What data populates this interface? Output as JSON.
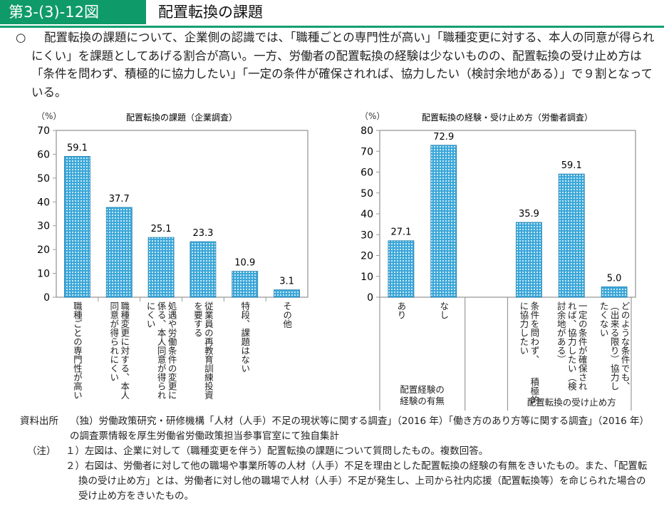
{
  "header": {
    "figure_number": "第3-(3)-12図",
    "title": "配置転換の課題"
  },
  "lead": {
    "bullet": "○",
    "text": "配置転換の課題について、企業側の認識では、「職種ごとの専門性が高い」「職種変更に対する、本人の同意が得られにくい」を課題としてあげる割合が高い。一方、労働者の配置転換の経験は少ないものの、配置転換の受け止め方は「条件を問わず、積極的に協力したい」「一定の条件が確保されれば、協力したい（検討余地がある）」で９割となっている。"
  },
  "chart_data": [
    {
      "type": "bar",
      "title": "配置転換の課題（企業調査）",
      "ylabel": "（%）",
      "ylim": [
        0,
        70
      ],
      "yticks": [
        0,
        10,
        20,
        30,
        40,
        50,
        60,
        70
      ],
      "categories": [
        "職種ごとの専門性が高い",
        "職種変更に対する、本人\n同意が得られにくい",
        "処遇や労働条件の変更に\n係る、本人同意が得られ\nにくい",
        "従業員の再教育訓練投資\nを要する",
        "特段、課題はない",
        "その他"
      ],
      "values": [
        59.1,
        37.7,
        25.1,
        23.3,
        10.9,
        3.1
      ],
      "bar_color": "#3aa6d8"
    },
    {
      "type": "bar",
      "title": "配置転換の経験・受け止め方（労働者調査）",
      "ylabel": "（%）",
      "ylim": [
        0,
        80
      ],
      "yticks": [
        0,
        10,
        20,
        30,
        40,
        50,
        60,
        70,
        80
      ],
      "categories": [
        "あり",
        "なし",
        "",
        "条件を問わず、　　積極的\nに協力したい",
        "一定の条件が確保され\nれば、協力したい（検\n討余地がある）",
        "どのような条件でも、\n（出来る限り）協力し\nたくない"
      ],
      "values": [
        27.1,
        72.9,
        null,
        35.9,
        59.1,
        5.0
      ],
      "groups": [
        "配置経験の\n経験の有無",
        "配置転換の受け止め方"
      ],
      "bar_color": "#3aa6d8"
    }
  ],
  "notes": [
    {
      "label": "資料出所",
      "text": "（独）労働政策研究・研修機構「人材（人手）不足の現状等に関する調査」（2016 年）「働き方のあり方等に関する調査」（2016 年）の調査票情報を厚生労働省労働政策担当参事官室にて独自集計"
    },
    {
      "label": "（注）",
      "text": "１）左図は、企業に対して（職種変更を伴う）配置転換の課題について質問したもの。複数回答。"
    },
    {
      "label": "",
      "text": "２）右図は、労働者に対して他の職場や事業所等の人材（人手）不足を理由とした配置転換の経験の有無をきいたもの。また、「配置転換の受け止め方」とは、労働者に対し他の職場で人材（人手）不足が発生し、上司から社内応援（配置転換等）を命じられた場合の受け止め方をきいたもの。"
    }
  ]
}
